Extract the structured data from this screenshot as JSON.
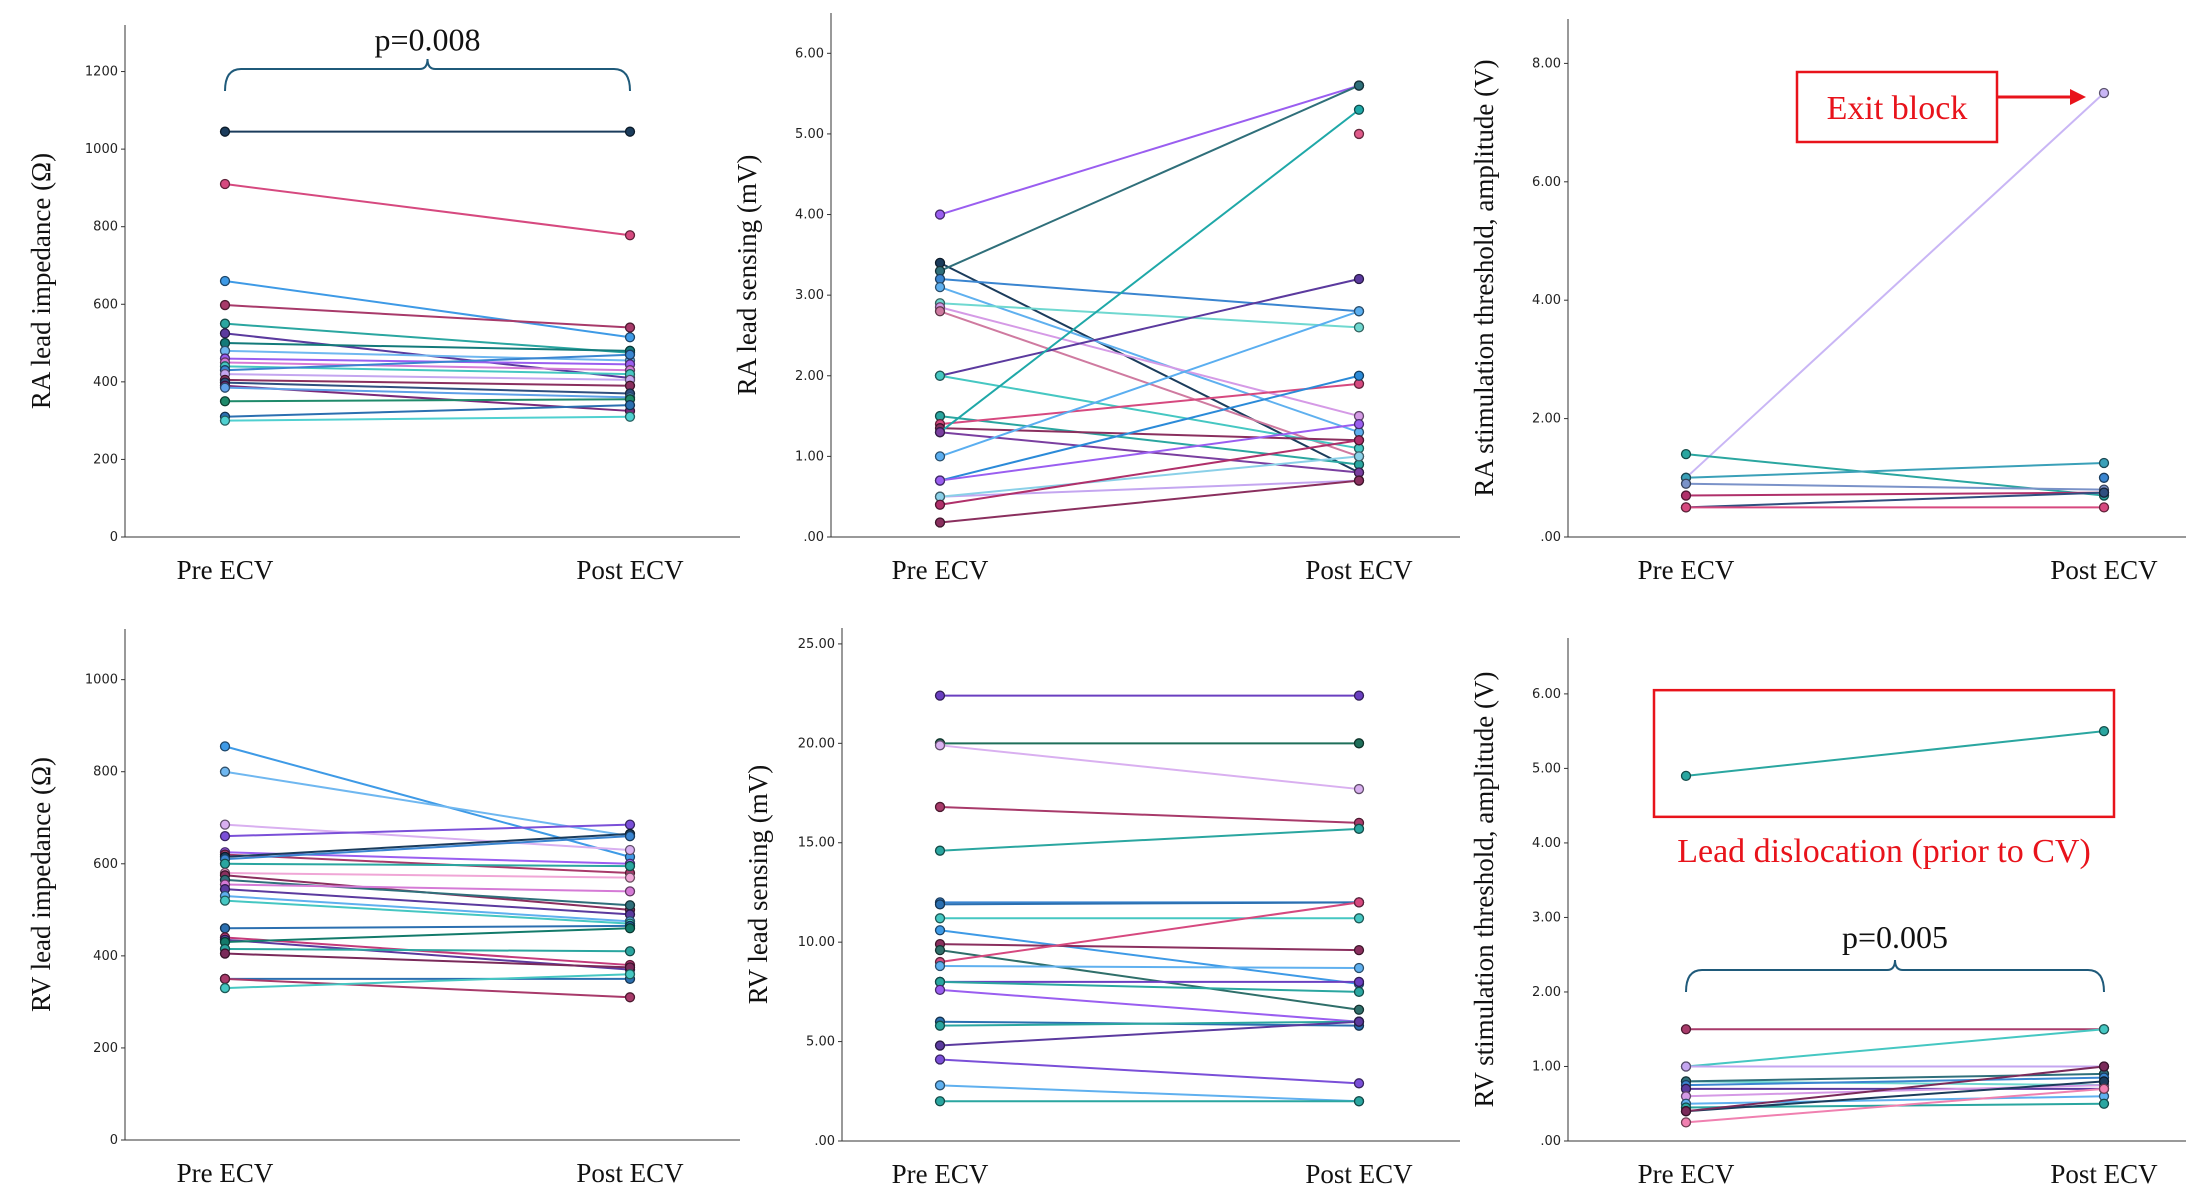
{
  "chart_data": [
    {
      "type": "line",
      "categories": [
        "Pre ECV",
        "Post ECV"
      ],
      "ylabel": "RA lead impedance (Ω)",
      "ylim": [
        0,
        1320
      ],
      "yticks": [
        0,
        200,
        400,
        600,
        800,
        1000,
        1200
      ],
      "tick_format": "int",
      "annotations": [
        {
          "kind": "bracket",
          "text": "p=0.008",
          "y_data": 1150,
          "text_y_data": 1285
        }
      ],
      "series": [
        {
          "values": [
            1045,
            1045
          ],
          "color": "#1b3c5c"
        },
        {
          "values": [
            910,
            778
          ],
          "color": "#d6497f"
        },
        {
          "values": [
            660,
            515
          ],
          "color": "#3e9ae6"
        },
        {
          "values": [
            598,
            540
          ],
          "color": "#a83a6a"
        },
        {
          "values": [
            550,
            475
          ],
          "color": "#2aa6a0"
        },
        {
          "values": [
            525,
            410
          ],
          "color": "#5b3a9e"
        },
        {
          "values": [
            500,
            480
          ],
          "color": "#137a7a"
        },
        {
          "values": [
            480,
            455
          ],
          "color": "#6fb7f0"
        },
        {
          "values": [
            460,
            445
          ],
          "color": "#9a5ef0"
        },
        {
          "values": [
            450,
            430
          ],
          "color": "#d57ad6"
        },
        {
          "values": [
            440,
            420
          ],
          "color": "#45c7c2"
        },
        {
          "values": [
            430,
            470
          ],
          "color": "#3a85d0"
        },
        {
          "values": [
            420,
            405
          ],
          "color": "#c4a6f0"
        },
        {
          "values": [
            405,
            390
          ],
          "color": "#8a2f5e"
        },
        {
          "values": [
            398,
            370
          ],
          "color": "#2f4f7f"
        },
        {
          "values": [
            390,
            325
          ],
          "color": "#7a2a7a"
        },
        {
          "values": [
            385,
            360
          ],
          "color": "#5fa0e8"
        },
        {
          "values": [
            350,
            355
          ],
          "color": "#1f8a6a"
        },
        {
          "values": [
            310,
            340
          ],
          "color": "#2b6fb0"
        },
        {
          "values": [
            300,
            310
          ],
          "color": "#4fd0d0"
        }
      ]
    },
    {
      "type": "line",
      "categories": [
        "Pre ECV",
        "Post ECV"
      ],
      "ylabel": "RA lead sensing (mV)",
      "ylim": [
        0,
        6.5
      ],
      "yticks": [
        0,
        1,
        2,
        3,
        4,
        5,
        6
      ],
      "tick_format": "2dec",
      "series": [
        {
          "values": [
            4.0,
            5.6
          ],
          "color": "#9a5ef0"
        },
        {
          "values": [
            3.4,
            0.8
          ],
          "color": "#1b3c5c"
        },
        {
          "values": [
            3.3,
            5.6
          ],
          "color": "#2f6f7a"
        },
        {
          "values": [
            3.2,
            2.8
          ],
          "color": "#3a85d0"
        },
        {
          "values": [
            3.1,
            1.3
          ],
          "color": "#5fb0ef"
        },
        {
          "values": [
            2.9,
            2.6
          ],
          "color": "#6fd8d0"
        },
        {
          "values": [
            2.85,
            1.5
          ],
          "color": "#d59ae6"
        },
        {
          "values": [
            2.8,
            1.0
          ],
          "color": "#cf7aa0"
        },
        {
          "values": [
            2.0,
            3.2
          ],
          "color": "#5b3a9e"
        },
        {
          "values": [
            2.0,
            1.1
          ],
          "color": "#45c7c2"
        },
        {
          "values": [
            1.5,
            0.9
          ],
          "color": "#2aa6a0"
        },
        {
          "values": [
            1.4,
            1.9
          ],
          "color": "#d6497f"
        },
        {
          "values": [
            1.35,
            1.2
          ],
          "color": "#8a2f5e"
        },
        {
          "values": [
            1.3,
            5.3
          ],
          "color": "#1fa8a8"
        },
        {
          "values": [
            1.3,
            0.8
          ],
          "color": "#7a3fa0"
        },
        {
          "values": [
            1.0,
            2.8
          ],
          "color": "#5aaef0"
        },
        {
          "values": [
            0.7,
            2.0
          ],
          "color": "#2b8ad8"
        },
        {
          "values": [
            0.7,
            1.4
          ],
          "color": "#9a5ef0"
        },
        {
          "values": [
            0.5,
            0.7
          ],
          "color": "#c4a6f0"
        },
        {
          "values": [
            0.5,
            1.0
          ],
          "color": "#8ad0e8"
        },
        {
          "values": [
            0.4,
            1.2
          ],
          "color": "#b0306a"
        },
        {
          "values": [
            0.18,
            0.7
          ],
          "color": "#8a2f5e"
        },
        {
          "values": [
            5.0,
            5.0
          ],
          "color": "#e05a8a",
          "points": "post"
        }
      ]
    },
    {
      "type": "line",
      "categories": [
        "Pre ECV",
        "Post ECV"
      ],
      "ylabel": "RA stimulation threshold, amplitude (V)",
      "ylim": [
        0,
        8.75
      ],
      "yticks": [
        0,
        2,
        4,
        6,
        8
      ],
      "tick_format": "2dec",
      "annotations": [
        {
          "kind": "boxed-arrow",
          "text": "Exit block",
          "target": [
            1,
            7.5
          ]
        }
      ],
      "series": [
        {
          "values": [
            1.0,
            7.5
          ],
          "color": "#c9b6f5"
        },
        {
          "values": [
            1.4,
            0.7
          ],
          "color": "#2aa6a0"
        },
        {
          "values": [
            1.0,
            1.25
          ],
          "color": "#3aa0b8"
        },
        {
          "values": [
            0.9,
            0.8
          ],
          "color": "#7a92c8"
        },
        {
          "values": [
            0.7,
            0.75
          ],
          "color": "#b0306a"
        },
        {
          "values": [
            0.5,
            0.75
          ],
          "color": "#2f4f7f"
        },
        {
          "values": [
            0.5,
            0.5
          ],
          "color": "#d6497f"
        },
        {
          "values": [
            1.0,
            1.0
          ],
          "color": "#3a85d0",
          "points": "post"
        }
      ]
    },
    {
      "type": "line",
      "categories": [
        "Pre ECV",
        "Post ECV"
      ],
      "ylabel": "RV lead impedance (Ω)",
      "ylim": [
        0,
        1110
      ],
      "yticks": [
        0,
        200,
        400,
        600,
        800,
        1000
      ],
      "tick_format": "int",
      "series": [
        {
          "values": [
            855,
            615
          ],
          "color": "#3e9ae6"
        },
        {
          "values": [
            800,
            660
          ],
          "color": "#6fb7f0"
        },
        {
          "values": [
            685,
            630
          ],
          "color": "#d9b0f0"
        },
        {
          "values": [
            660,
            685
          ],
          "color": "#7a4fd8"
        },
        {
          "values": [
            625,
            600
          ],
          "color": "#9a5ef0"
        },
        {
          "values": [
            620,
            580
          ],
          "color": "#a83a6a"
        },
        {
          "values": [
            615,
            665
          ],
          "color": "#1b3c5c"
        },
        {
          "values": [
            610,
            660
          ],
          "color": "#3a85d0"
        },
        {
          "values": [
            600,
            595
          ],
          "color": "#2aa6a0"
        },
        {
          "values": [
            580,
            570
          ],
          "color": "#f0a6d6"
        },
        {
          "values": [
            575,
            500
          ],
          "color": "#8a2f5e"
        },
        {
          "values": [
            565,
            510
          ],
          "color": "#2f6f7a"
        },
        {
          "values": [
            555,
            540
          ],
          "color": "#d57ad6"
        },
        {
          "values": [
            545,
            490
          ],
          "color": "#5b3a9e"
        },
        {
          "values": [
            530,
            475
          ],
          "color": "#5fb0ef"
        },
        {
          "values": [
            520,
            470
          ],
          "color": "#45c7c2"
        },
        {
          "values": [
            460,
            465
          ],
          "color": "#2b6fb0"
        },
        {
          "values": [
            440,
            380
          ],
          "color": "#c43a7a"
        },
        {
          "values": [
            435,
            370
          ],
          "color": "#5b3a9e"
        },
        {
          "values": [
            430,
            460
          ],
          "color": "#137a6a"
        },
        {
          "values": [
            415,
            410
          ],
          "color": "#2aa6a0"
        },
        {
          "values": [
            405,
            375
          ],
          "color": "#7a2a5a"
        },
        {
          "values": [
            350,
            350
          ],
          "color": "#2b6fb0"
        },
        {
          "values": [
            350,
            310
          ],
          "color": "#a83a6a"
        },
        {
          "values": [
            330,
            360
          ],
          "color": "#45c7c2"
        }
      ]
    },
    {
      "type": "line",
      "categories": [
        "Pre ECV",
        "Post ECV"
      ],
      "ylabel": "RV lead sensing (mV)",
      "ylim": [
        0,
        25.8
      ],
      "yticks": [
        0,
        5,
        10,
        15,
        20,
        25
      ],
      "tick_format": "2dec",
      "series": [
        {
          "values": [
            22.4,
            22.4
          ],
          "color": "#6a3fc0"
        },
        {
          "values": [
            20.0,
            20.0
          ],
          "color": "#1f6f5a"
        },
        {
          "values": [
            19.9,
            17.7
          ],
          "color": "#d9b0f0"
        },
        {
          "values": [
            16.8,
            16.0
          ],
          "color": "#a83a6a"
        },
        {
          "values": [
            14.6,
            15.7
          ],
          "color": "#2aa6a0"
        },
        {
          "values": [
            12.0,
            12.0
          ],
          "color": "#3a85d0"
        },
        {
          "values": [
            11.9,
            12.0
          ],
          "color": "#2b6fb0"
        },
        {
          "values": [
            11.2,
            11.2
          ],
          "color": "#45c7c2"
        },
        {
          "values": [
            10.6,
            7.9
          ],
          "color": "#3e9ae6"
        },
        {
          "values": [
            9.9,
            9.6
          ],
          "color": "#8a2f5e"
        },
        {
          "values": [
            9.6,
            6.6
          ],
          "color": "#2f6f6a"
        },
        {
          "values": [
            9.0,
            12.0
          ],
          "color": "#d6497f"
        },
        {
          "values": [
            8.8,
            8.7
          ],
          "color": "#5fb0ef"
        },
        {
          "values": [
            8.0,
            8.0
          ],
          "color": "#6a3fc0"
        },
        {
          "values": [
            8.0,
            7.5
          ],
          "color": "#2aa6a0"
        },
        {
          "values": [
            7.6,
            6.0
          ],
          "color": "#9a5ef0"
        },
        {
          "values": [
            6.0,
            5.8
          ],
          "color": "#2b6fb0"
        },
        {
          "values": [
            5.8,
            6.0
          ],
          "color": "#2aa6a0"
        },
        {
          "values": [
            4.8,
            6.0
          ],
          "color": "#5b3a9e"
        },
        {
          "values": [
            4.1,
            2.9
          ],
          "color": "#7a4fd8"
        },
        {
          "values": [
            2.8,
            2.0
          ],
          "color": "#5fb0ef"
        },
        {
          "values": [
            2.0,
            2.0
          ],
          "color": "#2aa6a0"
        }
      ]
    },
    {
      "type": "line",
      "categories": [
        "Pre ECV",
        "Post ECV"
      ],
      "ylabel": "RV stimulation threshold, amplitude (V)",
      "ylim": [
        0,
        6.75
      ],
      "yticks": [
        0,
        1,
        2,
        3,
        4,
        5,
        6
      ],
      "tick_format": "2dec",
      "annotations": [
        {
          "kind": "box",
          "text": "Lead dislocation (prior to CV)",
          "y_top": 6.05,
          "y_bottom": 4.35
        },
        {
          "kind": "bracket",
          "text": "p=0.005",
          "y_data": 2.0,
          "text_y_data": 2.75
        }
      ],
      "series": [
        {
          "values": [
            4.9,
            5.5
          ],
          "color": "#2aa6a0"
        },
        {
          "values": [
            1.5,
            1.5
          ],
          "color": "#a83a6a"
        },
        {
          "values": [
            1.0,
            1.5
          ],
          "color": "#45c7c2"
        },
        {
          "values": [
            1.0,
            1.0
          ],
          "color": "#c4a6f0"
        },
        {
          "values": [
            0.8,
            0.75
          ],
          "color": "#6fd8d0"
        },
        {
          "values": [
            0.8,
            0.9
          ],
          "color": "#2f6f7a"
        },
        {
          "values": [
            0.75,
            0.85
          ],
          "color": "#3a85d0"
        },
        {
          "values": [
            0.7,
            0.7
          ],
          "color": "#5b3a9e"
        },
        {
          "values": [
            0.6,
            0.75
          ],
          "color": "#d59ae6"
        },
        {
          "values": [
            0.5,
            0.6
          ],
          "color": "#5fb0ef"
        },
        {
          "values": [
            0.45,
            0.5
          ],
          "color": "#2aa6a0"
        },
        {
          "values": [
            0.4,
            0.8
          ],
          "color": "#1b3c5c"
        },
        {
          "values": [
            0.4,
            1.0
          ],
          "color": "#7a2a5a"
        },
        {
          "values": [
            0.25,
            0.7
          ],
          "color": "#f080b0"
        }
      ]
    }
  ]
}
